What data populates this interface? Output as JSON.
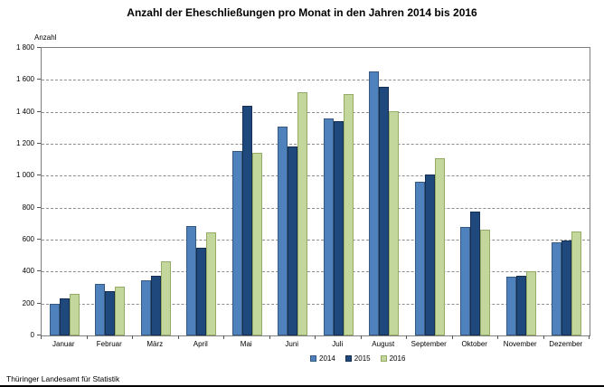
{
  "footer": "Thüringer Landesamt für Statistik",
  "chart_data": {
    "type": "bar",
    "title": "Anzahl der Eheschließungen pro Monat in den Jahren 2014 bis 2016",
    "xlabel": "",
    "ylabel": "Anzahl",
    "ylim": [
      0,
      1800
    ],
    "ytick_step": 200,
    "grid": true,
    "legend_position": "bottom-center",
    "categories": [
      "Januar",
      "Februar",
      "März",
      "April",
      "Mai",
      "Juni",
      "Juli",
      "August",
      "September",
      "Oktober",
      "November",
      "Dezember"
    ],
    "series": [
      {
        "name": "2014",
        "color": "#4f81bd",
        "border_color": "#35597f",
        "values": [
          200,
          320,
          345,
          685,
          1155,
          1310,
          1360,
          1655,
          960,
          680,
          370,
          585
        ]
      },
      {
        "name": "2015",
        "color": "#1f497d",
        "border_color": "#142f52",
        "values": [
          230,
          275,
          375,
          550,
          1435,
          1185,
          1340,
          1555,
          1005,
          775,
          375,
          595
        ]
      },
      {
        "name": "2016",
        "color": "#c3d69b",
        "border_color": "#94ac67",
        "values": [
          260,
          305,
          465,
          645,
          1145,
          1520,
          1510,
          1405,
          1110,
          660,
          400,
          650
        ]
      }
    ]
  }
}
